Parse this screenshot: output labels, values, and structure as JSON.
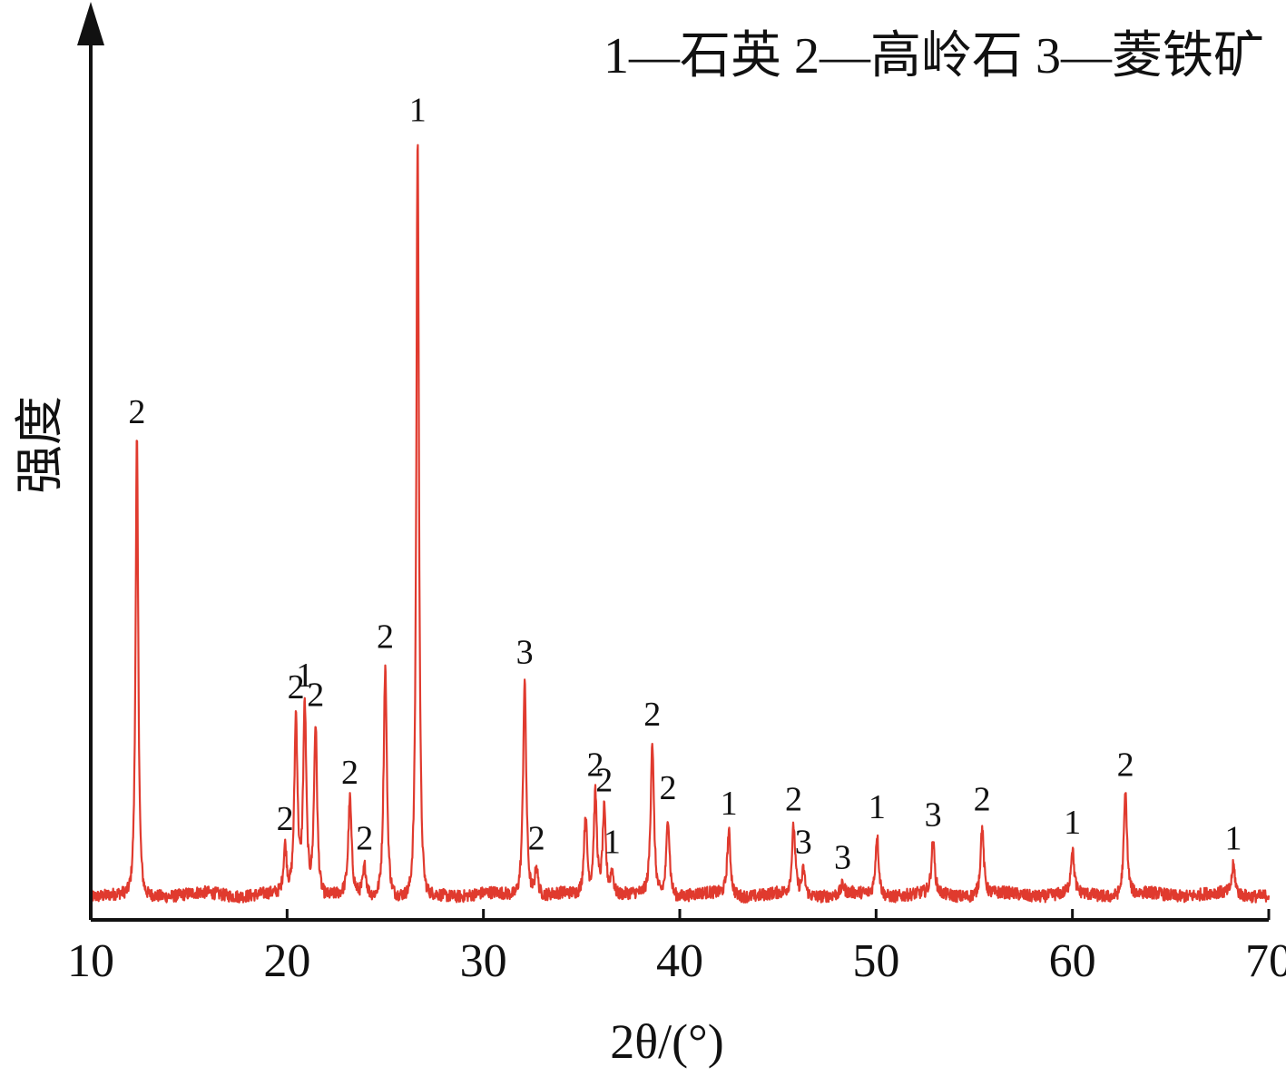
{
  "chart_data": {
    "type": "line",
    "title": "",
    "legend": "1—石英  2—高岭石  3—菱铁矿",
    "legend_position": "top-right",
    "xlabel": "2θ/(°)",
    "ylabel": "强度",
    "xlim": [
      10,
      70
    ],
    "ylim": [
      0,
      100
    ],
    "xticks": [
      10,
      20,
      30,
      40,
      50,
      60,
      70
    ],
    "grid": false,
    "y_tick_labels": false,
    "line_color": "#e03a2e",
    "axis_color": "#111111",
    "baseline": 3.3,
    "series": [
      {
        "peaks": [
          {
            "x": 12.35,
            "y": 62.0,
            "label": "2"
          },
          {
            "x": 19.9,
            "y": 9.5,
            "label": "2"
          },
          {
            "x": 20.45,
            "y": 26.5,
            "label": "2"
          },
          {
            "x": 20.9,
            "y": 28.0,
            "label": "1"
          },
          {
            "x": 21.45,
            "y": 25.5,
            "label": "2"
          },
          {
            "x": 23.2,
            "y": 15.5,
            "label": "2"
          },
          {
            "x": 23.95,
            "y": 7.0,
            "label": "2"
          },
          {
            "x": 25.0,
            "y": 33.0,
            "label": "2"
          },
          {
            "x": 26.65,
            "y": 101.0,
            "label": "1"
          },
          {
            "x": 32.1,
            "y": 31.0,
            "label": "3"
          },
          {
            "x": 32.7,
            "y": 7.0,
            "label": "2"
          },
          {
            "x": 35.2,
            "y": 13.5,
            "label": null
          },
          {
            "x": 35.7,
            "y": 16.5,
            "label": "2"
          },
          {
            "x": 36.15,
            "y": 14.5,
            "label": "2"
          },
          {
            "x": 36.55,
            "y": 6.5,
            "label": "1"
          },
          {
            "x": 38.6,
            "y": 23.0,
            "label": "2"
          },
          {
            "x": 39.4,
            "y": 13.5,
            "label": "2"
          },
          {
            "x": 42.5,
            "y": 11.5,
            "label": "1"
          },
          {
            "x": 45.8,
            "y": 12.0,
            "label": "2"
          },
          {
            "x": 46.3,
            "y": 6.5,
            "label": "3"
          },
          {
            "x": 48.3,
            "y": 4.5,
            "label": "3"
          },
          {
            "x": 50.05,
            "y": 11.0,
            "label": "1"
          },
          {
            "x": 52.9,
            "y": 10.0,
            "label": "3"
          },
          {
            "x": 55.4,
            "y": 12.0,
            "label": "2"
          },
          {
            "x": 60.0,
            "y": 9.0,
            "label": "1"
          },
          {
            "x": 62.7,
            "y": 16.5,
            "label": "2"
          },
          {
            "x": 68.2,
            "y": 7.0,
            "label": "1"
          }
        ]
      }
    ]
  }
}
